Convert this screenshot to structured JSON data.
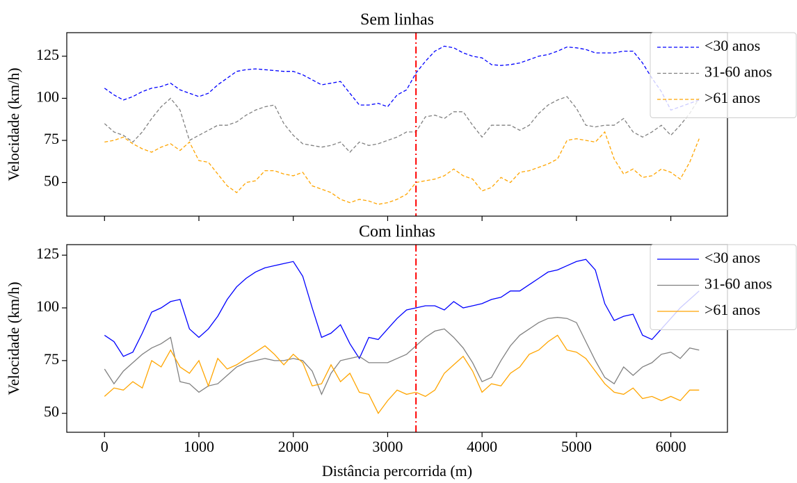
{
  "chart_data": [
    {
      "type": "line",
      "title": "Sem linhas",
      "ylabel": "Velocidade (km/h)",
      "x": [
        0,
        100,
        200,
        300,
        400,
        500,
        600,
        700,
        800,
        900,
        1000,
        1100,
        1200,
        1300,
        1400,
        1500,
        1600,
        1700,
        1800,
        1900,
        2000,
        2100,
        2200,
        2300,
        2400,
        2500,
        2600,
        2700,
        2800,
        2900,
        3000,
        3100,
        3200,
        3300,
        3400,
        3500,
        3600,
        3700,
        3800,
        3900,
        4000,
        4100,
        4200,
        4300,
        4400,
        4500,
        4600,
        4700,
        4800,
        4900,
        5000,
        5100,
        5200,
        5300,
        5400,
        5500,
        5600,
        5700,
        5800,
        5900,
        6000,
        6100,
        6200,
        6300
      ],
      "series": [
        {
          "name": "<30 anos",
          "color": "#0000ff",
          "linestyle": "dashed",
          "values": [
            106,
            102,
            99,
            101,
            104,
            106,
            107,
            109,
            105,
            103,
            101,
            103,
            108,
            112,
            116,
            117,
            117.5,
            117,
            116.5,
            116,
            116,
            114,
            111,
            108,
            109,
            110,
            103,
            96,
            96,
            97,
            95,
            102,
            105,
            115,
            122,
            128,
            131,
            130,
            127,
            125,
            124,
            120,
            119.5,
            120,
            121,
            123,
            125,
            126,
            128,
            130.5,
            130,
            129,
            127,
            127,
            127,
            128,
            128,
            121,
            112,
            104,
            93,
            95,
            97,
            99
          ]
        },
        {
          "name": "31-60 anos",
          "color": "#808080",
          "linestyle": "dashed",
          "values": [
            85,
            80,
            78,
            74,
            80,
            88,
            95,
            100,
            93,
            75,
            78,
            81,
            84,
            84,
            86,
            90,
            93,
            95,
            96,
            85,
            78,
            73,
            72,
            71,
            72,
            74,
            68,
            74,
            72,
            73,
            75,
            77,
            80,
            80,
            89,
            90,
            88,
            92,
            92,
            84,
            77,
            84,
            84,
            84,
            81,
            84,
            91,
            96,
            99,
            101,
            94,
            84,
            83,
            84,
            84,
            88,
            80,
            77,
            80,
            84,
            78,
            84,
            91,
            100
          ]
        },
        {
          "name": ">61 anos",
          "color": "#ffa500",
          "linestyle": "dashed",
          "values": [
            74,
            75,
            77,
            73,
            70,
            68,
            71,
            73,
            69,
            74,
            63,
            62,
            55,
            48,
            44,
            50,
            51,
            57,
            57,
            55,
            54,
            56,
            48,
            46,
            44,
            40,
            38,
            40,
            39,
            37,
            38,
            40,
            43,
            50,
            51,
            52,
            54,
            58,
            54,
            52,
            45,
            47,
            53,
            50,
            56,
            57,
            59,
            61,
            64,
            75,
            76,
            75,
            74,
            80,
            64,
            55,
            58,
            53,
            54,
            58,
            56,
            52,
            62,
            76
          ]
        }
      ],
      "xlim": [
        -400,
        6600
      ],
      "xticks": [
        0,
        1000,
        2000,
        3000,
        4000,
        5000,
        6000
      ],
      "xtick_labels": false,
      "ylim": [
        30,
        139
      ],
      "yticks": [
        50,
        75,
        100,
        125
      ],
      "vline": {
        "x": 3300,
        "color": "#ff0000",
        "linestyle": "dashdot"
      },
      "legend": "upper right"
    },
    {
      "type": "line",
      "title": "Com linhas",
      "ylabel": "Velocidade (km/h)",
      "xlabel": "Distância percorrida (m)",
      "x": [
        0,
        100,
        200,
        300,
        400,
        500,
        600,
        700,
        800,
        900,
        1000,
        1100,
        1200,
        1300,
        1400,
        1500,
        1600,
        1700,
        1800,
        1900,
        2000,
        2100,
        2200,
        2300,
        2400,
        2500,
        2600,
        2700,
        2800,
        2900,
        3000,
        3100,
        3200,
        3300,
        3400,
        3500,
        3600,
        3700,
        3800,
        3900,
        4000,
        4100,
        4200,
        4300,
        4400,
        4500,
        4600,
        4700,
        4800,
        4900,
        5000,
        5100,
        5200,
        5300,
        5400,
        5500,
        5600,
        5700,
        5800,
        5900,
        6000,
        6100,
        6200,
        6300
      ],
      "series": [
        {
          "name": "<30 anos",
          "color": "#0000ff",
          "linestyle": "solid",
          "values": [
            87,
            84,
            77,
            79,
            88,
            98,
            100,
            103,
            104,
            90,
            86,
            90,
            96,
            104,
            110,
            114,
            117,
            119,
            120,
            121,
            122,
            115,
            100,
            86,
            88,
            92,
            83,
            76,
            86,
            85,
            90,
            95,
            99,
            100,
            101,
            101,
            99,
            103,
            100,
            101,
            102,
            104,
            105,
            108,
            108,
            111,
            114,
            117,
            118,
            120,
            122,
            123,
            118,
            102,
            94,
            96,
            97,
            87,
            85,
            90,
            95,
            100,
            104,
            108
          ]
        },
        {
          "name": "31-60 anos",
          "color": "#808080",
          "linestyle": "solid",
          "values": [
            71,
            64,
            70,
            74,
            78,
            81,
            83,
            86,
            65,
            64,
            60,
            63,
            64,
            68,
            72,
            74,
            75,
            76,
            75,
            75,
            76,
            75,
            70,
            59,
            69,
            75,
            76,
            77,
            74,
            74,
            74,
            76,
            78,
            82,
            86,
            89,
            90,
            86,
            81,
            74,
            65,
            67,
            75,
            82,
            87,
            90,
            93,
            95,
            95.5,
            95,
            93,
            84,
            75,
            67,
            64,
            72,
            68,
            72,
            74,
            78,
            79,
            76,
            81,
            80
          ]
        },
        {
          "name": ">61 anos",
          "color": "#ffa500",
          "linestyle": "solid",
          "values": [
            58,
            62,
            61,
            65,
            62,
            75,
            72,
            80,
            72,
            69,
            75,
            63,
            76,
            71,
            73,
            76,
            79,
            82,
            78,
            73,
            78,
            74,
            63,
            64,
            73,
            65,
            69,
            60,
            59,
            50,
            56,
            61,
            59,
            60,
            58,
            61,
            69,
            73,
            77,
            70,
            60,
            64,
            63,
            69,
            72,
            78,
            80,
            84,
            87,
            80,
            79,
            76,
            70,
            64,
            60,
            59,
            62,
            57,
            58,
            56,
            58,
            56,
            61,
            61
          ]
        }
      ],
      "xlim": [
        -400,
        6600
      ],
      "xticks": [
        0,
        1000,
        2000,
        3000,
        4000,
        5000,
        6000
      ],
      "xtick_labels": true,
      "ylim": [
        41,
        130
      ],
      "yticks": [
        50,
        75,
        100,
        125
      ],
      "vline": {
        "x": 3300,
        "color": "#ff0000",
        "linestyle": "dashdot"
      },
      "legend": "upper right"
    }
  ]
}
